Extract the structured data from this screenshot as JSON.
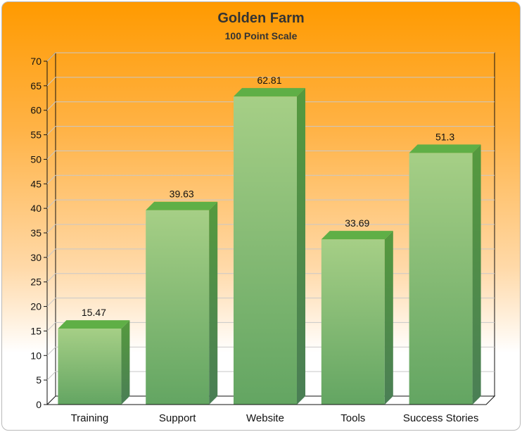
{
  "chart_data": {
    "type": "bar",
    "title": "Golden Farm",
    "subtitle": "100 Point Scale",
    "categories": [
      "Training",
      "Support",
      "Website",
      "Tools",
      "Success Stories"
    ],
    "values": [
      15.47,
      39.63,
      62.81,
      33.69,
      51.3
    ],
    "value_labels": [
      "15.47",
      "39.63",
      "62.81",
      "33.69",
      "51.3"
    ],
    "ylim": [
      0,
      70
    ],
    "yticks": [
      "0",
      "5",
      "10",
      "15",
      "20",
      "25",
      "30",
      "35",
      "40",
      "45",
      "50",
      "55",
      "60",
      "65",
      "70"
    ],
    "grid": true,
    "style": "3d-column",
    "colors": {
      "bar_front": "#7dbb6b",
      "bar_side": "#4e8f3c",
      "bar_top": "#5faf46",
      "background_top": "#ff9a00",
      "background_bottom": "#ffffff"
    }
  }
}
